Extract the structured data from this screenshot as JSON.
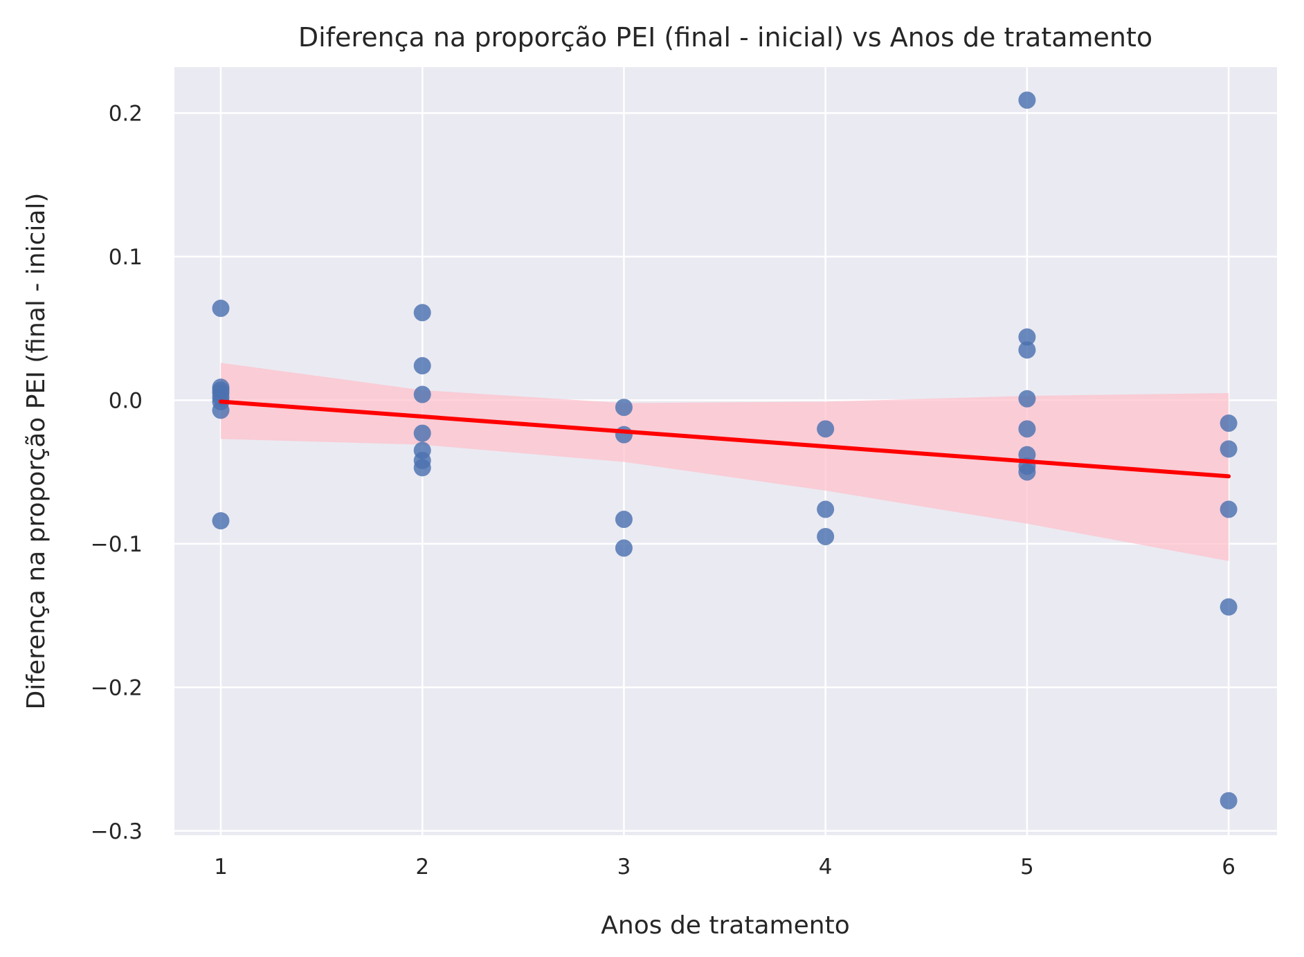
{
  "chart_data": {
    "type": "scatter",
    "title": "Diferença na proporção PEI (final - inicial) vs Anos de tratamento",
    "xlabel": "Anos de tratamento",
    "ylabel": "Diferença na proporção PEI (final - inicial)",
    "xlim": [
      0.77,
      6.24
    ],
    "ylim": [
      -0.303,
      0.232
    ],
    "xticks": [
      1,
      2,
      3,
      4,
      5,
      6
    ],
    "yticks": [
      0.2,
      0.1,
      0.0,
      -0.1,
      -0.2,
      -0.3
    ],
    "ytick_labels": [
      "0.2",
      "0.1",
      "0.0",
      "−0.1",
      "−0.2",
      "−0.3"
    ],
    "grid": true,
    "background": "#eaeaf2",
    "point_color": "#4c72b0",
    "line_color": "#ff0000",
    "band_color": "#ffc0cb",
    "points": [
      {
        "x": 1,
        "y": 0.064
      },
      {
        "x": 1,
        "y": 0.009
      },
      {
        "x": 1,
        "y": 0.007
      },
      {
        "x": 1,
        "y": 0.005
      },
      {
        "x": 1,
        "y": 0.002
      },
      {
        "x": 1,
        "y": -0.001
      },
      {
        "x": 1,
        "y": -0.007
      },
      {
        "x": 1,
        "y": -0.084
      },
      {
        "x": 2,
        "y": 0.061
      },
      {
        "x": 2,
        "y": 0.024
      },
      {
        "x": 2,
        "y": 0.004
      },
      {
        "x": 2,
        "y": -0.023
      },
      {
        "x": 2,
        "y": -0.035
      },
      {
        "x": 2,
        "y": -0.042
      },
      {
        "x": 2,
        "y": -0.047
      },
      {
        "x": 3,
        "y": -0.005
      },
      {
        "x": 3,
        "y": -0.024
      },
      {
        "x": 3,
        "y": -0.083
      },
      {
        "x": 3,
        "y": -0.103
      },
      {
        "x": 4,
        "y": -0.02
      },
      {
        "x": 4,
        "y": -0.076
      },
      {
        "x": 4,
        "y": -0.095
      },
      {
        "x": 5,
        "y": 0.209
      },
      {
        "x": 5,
        "y": 0.044
      },
      {
        "x": 5,
        "y": 0.035
      },
      {
        "x": 5,
        "y": 0.001
      },
      {
        "x": 5,
        "y": -0.02
      },
      {
        "x": 5,
        "y": -0.038
      },
      {
        "x": 5,
        "y": -0.046
      },
      {
        "x": 5,
        "y": -0.05
      },
      {
        "x": 6,
        "y": -0.016
      },
      {
        "x": 6,
        "y": -0.034
      },
      {
        "x": 6,
        "y": -0.076
      },
      {
        "x": 6,
        "y": -0.144
      },
      {
        "x": 6,
        "y": -0.279
      }
    ],
    "regression_line": {
      "x": [
        1,
        6
      ],
      "y": [
        -0.001,
        -0.053
      ]
    },
    "confidence_band": {
      "x": [
        1,
        2,
        3,
        4,
        5,
        6
      ],
      "upper": [
        0.026,
        0.007,
        -0.002,
        -0.001,
        0.003,
        0.005
      ],
      "lower": [
        -0.027,
        -0.031,
        -0.043,
        -0.063,
        -0.086,
        -0.112
      ]
    }
  }
}
